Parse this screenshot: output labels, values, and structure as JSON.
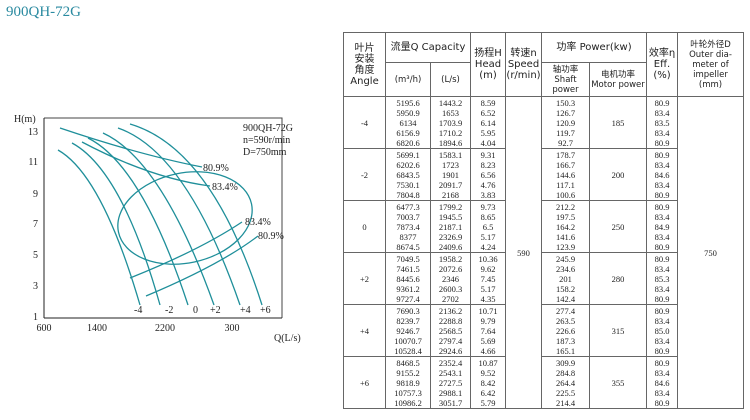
{
  "title": "900QH-72G",
  "chart": {
    "y_label": "H(m)",
    "x_label": "Q(L/s)",
    "yticks": [
      "13",
      "11",
      "9",
      "7",
      "5",
      "3",
      "1"
    ],
    "xticks": [
      "600",
      "1400",
      "2200",
      "300"
    ],
    "legend": [
      "900QH-72G",
      "n=590r/min",
      "D=750mm"
    ],
    "efficiency_labels": [
      "80.9%",
      "83.4%",
      "83.4%",
      "80.9%"
    ],
    "angle_labels": [
      "-4",
      "-2",
      "0",
      "+2",
      "+4",
      "+6"
    ]
  },
  "table": {
    "headers": {
      "angle": [
        "叶片",
        "安装",
        "角度",
        "Angle"
      ],
      "capacity": "流量Q Capacity",
      "capacity_m3h": "(m³/h)",
      "capacity_ls": "(L/s)",
      "head": [
        "扬程H",
        "Head",
        "(m)"
      ],
      "speed": [
        "转速n",
        "Speed",
        "(r/min)"
      ],
      "power": "功率 Power(kw)",
      "shaft_power": [
        "轴功率",
        "Shaft power"
      ],
      "motor_power": [
        "电机功率",
        "Motor power"
      ],
      "efficiency": [
        "效率η",
        "Eff.",
        "(%)"
      ],
      "diameter": [
        "叶轮外径D",
        "Outer dia-",
        "meter of",
        "impeller",
        "(mm)"
      ]
    },
    "speed": 590,
    "diameter": 750,
    "groups": [
      {
        "angle": "-4",
        "capacity_m3h": [
          5195.6,
          5950.9,
          6134,
          6156.9,
          6820.6
        ],
        "capacity_ls": [
          1443.2,
          1653,
          1703.9,
          1710.2,
          1894.6
        ],
        "head": [
          8.59,
          6.52,
          6.14,
          5.95,
          4.04
        ],
        "shaft_power": [
          150.3,
          126.7,
          120.9,
          119.7,
          92.7
        ],
        "motor_power": 185,
        "efficiency": [
          80.9,
          83.4,
          83.5,
          83.4,
          80.9
        ]
      },
      {
        "angle": "-2",
        "capacity_m3h": [
          5699.1,
          6202.6,
          6843.5,
          7530.1,
          7804.8
        ],
        "capacity_ls": [
          1583.1,
          1723,
          1901,
          2091.7,
          2168
        ],
        "head": [
          9.31,
          8.23,
          6.56,
          4.76,
          3.83
        ],
        "shaft_power": [
          178.7,
          166.7,
          144.6,
          117.1,
          100.6
        ],
        "motor_power": 200,
        "efficiency": [
          80.9,
          83.4,
          84.6,
          83.4,
          80.9
        ]
      },
      {
        "angle": "0",
        "capacity_m3h": [
          6477.3,
          7003.7,
          7873.4,
          8377,
          8674.5
        ],
        "capacity_ls": [
          1799.2,
          1945.5,
          2187.1,
          2326.9,
          2409.6
        ],
        "head": [
          9.73,
          8.65,
          6.5,
          5.17,
          4.24
        ],
        "shaft_power": [
          212.2,
          197.5,
          164.2,
          141.6,
          123.9
        ],
        "motor_power": 250,
        "efficiency": [
          80.9,
          83.4,
          84.9,
          83.4,
          80.9
        ]
      },
      {
        "angle": "+2",
        "capacity_m3h": [
          7049.5,
          7461.5,
          8445.6,
          9361.2,
          9727.4
        ],
        "capacity_ls": [
          1958.2,
          2072.6,
          2346,
          2600.3,
          2702
        ],
        "head": [
          10.36,
          9.62,
          7.45,
          5.17,
          4.35
        ],
        "shaft_power": [
          245.9,
          234.6,
          201,
          158.2,
          142.4
        ],
        "motor_power": 280,
        "efficiency": [
          80.9,
          83.4,
          85.3,
          83.4,
          80.9
        ]
      },
      {
        "angle": "+4",
        "capacity_m3h": [
          7690.3,
          8239.7,
          9246.7,
          10070.7,
          10528.4
        ],
        "capacity_ls": [
          2136.2,
          2288.8,
          2568.5,
          2797.4,
          2924.6
        ],
        "head": [
          10.71,
          9.79,
          7.64,
          5.69,
          4.66
        ],
        "shaft_power": [
          277.4,
          263.5,
          226.6,
          187.3,
          165.1
        ],
        "motor_power": 315,
        "efficiency": [
          80.9,
          83.4,
          "85.0",
          83.4,
          80.9
        ]
      },
      {
        "angle": "+6",
        "capacity_m3h": [
          8468.5,
          9155.2,
          9818.9,
          10757.3,
          10986.2
        ],
        "capacity_ls": [
          2352.4,
          2543.1,
          2727.5,
          2988.1,
          3051.7
        ],
        "head": [
          10.87,
          9.52,
          8.42,
          6.42,
          5.79
        ],
        "shaft_power": [
          309.9,
          284.8,
          264.4,
          225.5,
          214.4
        ],
        "motor_power": 355,
        "efficiency": [
          80.9,
          83.4,
          84.6,
          83.4,
          80.9
        ]
      }
    ]
  }
}
